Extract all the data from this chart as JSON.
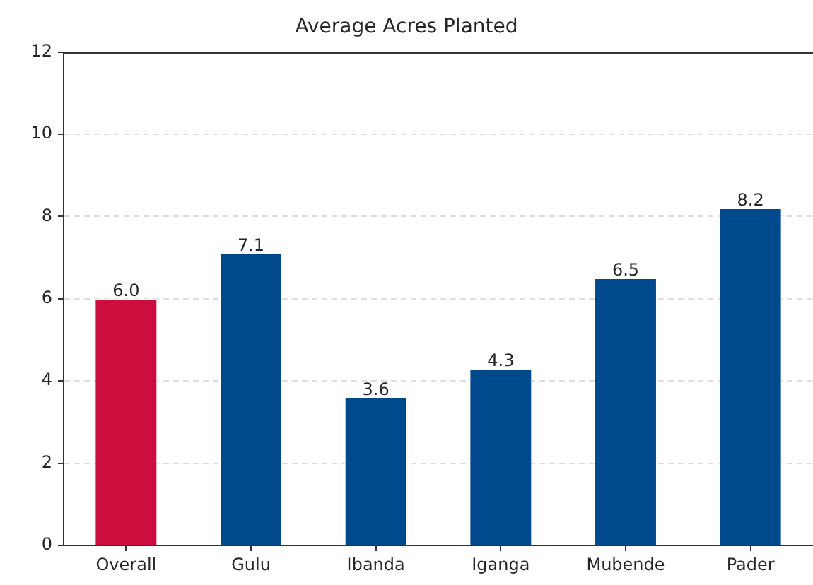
{
  "chart_data": {
    "type": "bar",
    "title": "Average Acres Planted",
    "categories": [
      "Overall",
      "Gulu",
      "Ibanda",
      "Iganga",
      "Mubende",
      "Pader"
    ],
    "values": [
      6.0,
      7.1,
      3.6,
      4.3,
      6.5,
      8.2
    ],
    "colors": [
      "#cc0e3f",
      "#00498d",
      "#00498d",
      "#00498d",
      "#00498d",
      "#00498d"
    ],
    "value_labels": [
      "6.0",
      "7.1",
      "3.6",
      "4.3",
      "6.5",
      "8.2"
    ],
    "ylim": [
      0,
      12
    ],
    "yticks": [
      0,
      2,
      4,
      6,
      8,
      10,
      12
    ],
    "grid": "y"
  }
}
